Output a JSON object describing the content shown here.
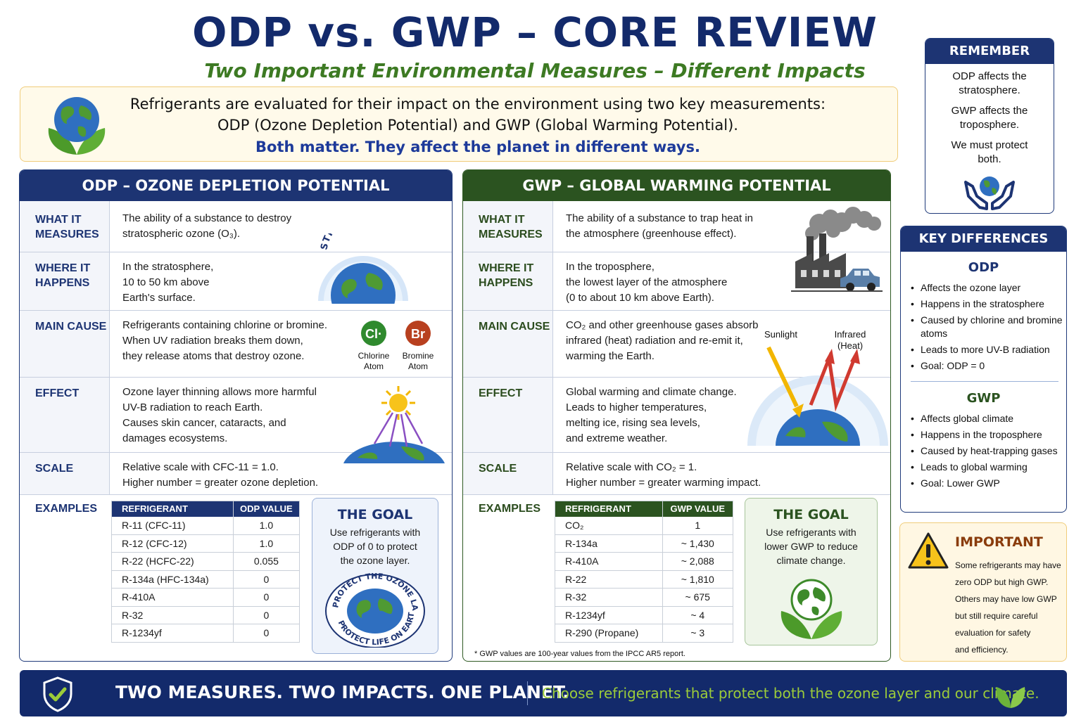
{
  "header": {
    "title": "ODP vs. GWP – CORE REVIEW",
    "subtitle": "Two Important Environmental Measures – Different Impacts"
  },
  "intro": {
    "line1": "Refrigerants are evaluated for their impact on the environment using two key measurements:",
    "line2": "ODP (Ozone Depletion Potential) and GWP (Global Warming Potential).",
    "line3": "Both matter.  They affect the planet in different ways."
  },
  "odp": {
    "heading": "ODP – OZONE DEPLETION POTENTIAL",
    "rows": [
      {
        "label": "WHAT IT MEASURES",
        "text": "The ability of a substance to destroy stratospheric ozone (O₃)."
      },
      {
        "label": "WHERE IT HAPPENS",
        "text": "In the stratosphere, 10 to 50 km above Earth's surface."
      },
      {
        "label": "MAIN CAUSE",
        "text": "Refrigerants containing chlorine or bromine. When UV radiation breaks them down, they release atoms that destroy ozone."
      },
      {
        "label": "EFFECT",
        "text": "Ozone layer thinning allows more harmful UV-B radiation to reach Earth. Causes skin cancer, cataracts, and damages ecosystems."
      },
      {
        "label": "SCALE",
        "text": "Relative scale with CFC-11 = 1.0. Higher number = greater ozone depletion."
      },
      {
        "label": "EXAMPLES"
      }
    ],
    "lines": {
      "measures": [
        "The ability of a substance to destroy",
        "stratospheric ozone (O₃)."
      ],
      "where": [
        "In the stratosphere,",
        "10 to 50 km above",
        "Earth's surface."
      ],
      "cause": [
        "Refrigerants containing chlorine or bromine.",
        "When UV radiation breaks them down,",
        "they release atoms that destroy ozone."
      ],
      "effect": [
        "Ozone layer thinning allows more harmful",
        "UV-B radiation to reach Earth.",
        "Causes skin cancer, cataracts, and",
        "damages ecosystems."
      ],
      "scale": [
        "Relative scale with CFC-11 = 1.0.",
        "Higher number = greater ozone depletion."
      ]
    },
    "illus": {
      "stratosphere": "STRATOSPHERE",
      "chlorine_symbol": "Cl·",
      "chlorine_label": [
        "Chlorine",
        "Atom"
      ],
      "bromine_symbol": "Br",
      "bromine_label": [
        "Bromine",
        "Atom"
      ]
    },
    "table": {
      "headers": [
        "REFRIGERANT",
        "ODP VALUE"
      ],
      "rows": [
        [
          "R-11 (CFC-11)",
          "1.0"
        ],
        [
          "R-12 (CFC-12)",
          "1.0"
        ],
        [
          "R-22 (HCFC-22)",
          "0.055"
        ],
        [
          "R-134a (HFC-134a)",
          "0"
        ],
        [
          "R-410A",
          "0"
        ],
        [
          "R-32",
          "0"
        ],
        [
          "R-1234yf",
          "0"
        ]
      ]
    },
    "goal": {
      "title": "THE GOAL",
      "text": [
        "Use refrigerants with",
        "ODP of 0 to protect",
        "the ozone layer."
      ],
      "badge_top": "PROTECT THE OZONE LAYER",
      "badge_bottom": "PROTECT LIFE ON EARTH"
    }
  },
  "gwp": {
    "heading": "GWP – GLOBAL WARMING POTENTIAL",
    "labels": [
      "WHAT IT MEASURES",
      "WHERE IT HAPPENS",
      "MAIN CAUSE",
      "EFFECT",
      "SCALE",
      "EXAMPLES"
    ],
    "lines": {
      "measures": [
        "The ability of a substance to trap heat in",
        "the atmosphere (greenhouse effect)."
      ],
      "where": [
        "In the troposphere,",
        "the lowest layer of the atmosphere",
        "(0 to about 10 km above Earth)."
      ],
      "cause": [
        "CO₂ and other greenhouse gases absorb",
        "infrared (heat) radiation and re-emit it,",
        "warming the Earth."
      ],
      "effect": [
        "Global warming and climate change.",
        "Leads to higher temperatures,",
        "melting ice, rising sea levels,",
        "and extreme weather."
      ],
      "scale": [
        "Relative scale with CO₂ = 1.",
        "Higher number = greater warming impact."
      ]
    },
    "illus": {
      "sunlight": "Sunlight",
      "infrared": [
        "Infrared",
        "(Heat)"
      ]
    },
    "table": {
      "headers": [
        "REFRIGERANT",
        "GWP VALUE"
      ],
      "rows": [
        [
          "CO₂",
          "1"
        ],
        [
          "R-134a",
          "~ 1,430"
        ],
        [
          "R-410A",
          "~ 2,088"
        ],
        [
          "R-22",
          "~ 1,810"
        ],
        [
          "R-32",
          "~ 675"
        ],
        [
          "R-1234yf",
          "~ 4"
        ],
        [
          "R-290 (Propane)",
          "~ 3"
        ]
      ]
    },
    "goal": {
      "title": "THE GOAL",
      "text": [
        "Use refrigerants with",
        "lower GWP to reduce",
        "climate change."
      ]
    },
    "footnote": "* GWP values are 100-year values from the IPCC AR5 report."
  },
  "remember": {
    "title": "REMEMBER",
    "p1": [
      "ODP affects the",
      "stratosphere."
    ],
    "p2": [
      "GWP affects the",
      "troposphere."
    ],
    "p3": [
      "We must protect",
      "both."
    ]
  },
  "key_differences": {
    "title": "KEY DIFFERENCES",
    "odp_heading": "ODP",
    "odp_items": [
      "Affects the ozone layer",
      "Happens in the stratosphere",
      "Caused by chlorine and bromine atoms",
      "Leads to more UV-B radiation",
      "Goal: ODP = 0"
    ],
    "gwp_heading": "GWP",
    "gwp_items": [
      "Affects global climate",
      "Happens in the troposphere",
      "Caused by heat-trapping gases",
      "Leads to global warming",
      "Goal: Lower GWP"
    ]
  },
  "important": {
    "title": "IMPORTANT",
    "lines": [
      "Some refrigerants may have",
      "zero ODP but high GWP.",
      "Others may have low GWP",
      "but still require careful",
      "evaluation for safety",
      "and efficiency."
    ]
  },
  "banner": {
    "slogan": "TWO MEASURES.  TWO IMPACTS.  ONE PLANET.",
    "message": "Choose refrigerants that protect both the ozone layer and our climate."
  },
  "colors": {
    "navy": "#1d3473",
    "green": "#2b5320",
    "accent_green": "#3d7a23",
    "amber": "#f0cc7a"
  }
}
